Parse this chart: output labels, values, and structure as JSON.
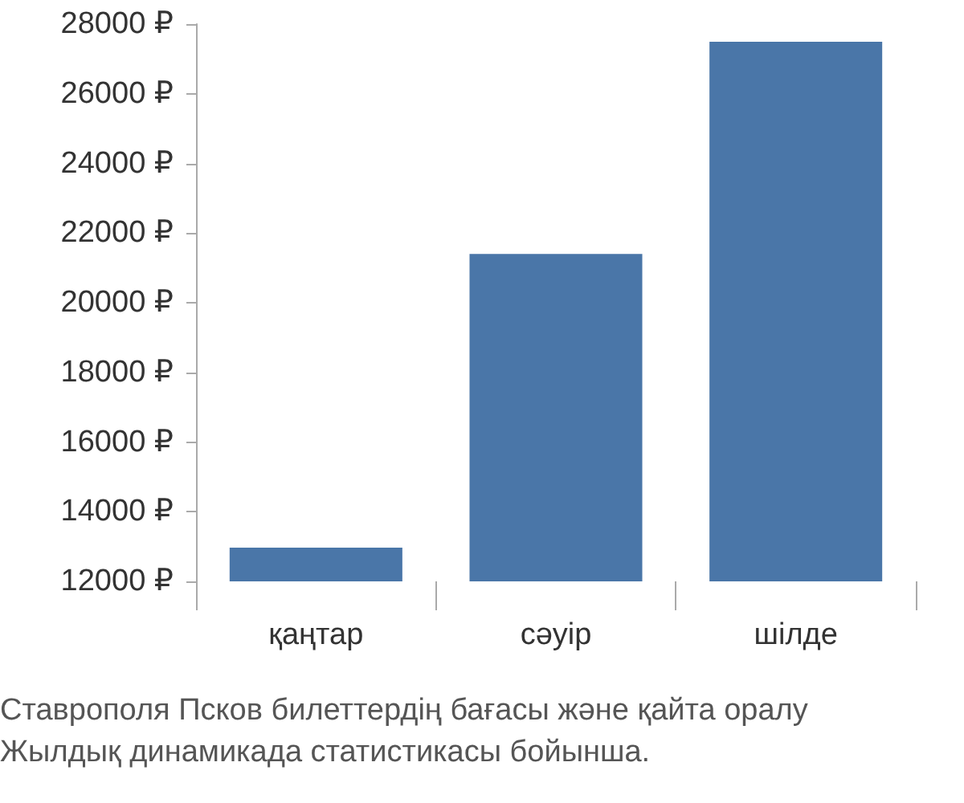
{
  "chart_data": {
    "type": "bar",
    "categories": [
      "қаңтар",
      "сәуір",
      "шілде"
    ],
    "series": [
      {
        "color": "#4a76a8",
        "values": [
          12970,
          21400,
          27490
        ]
      }
    ],
    "ylim": [
      12000,
      28000
    ],
    "yticks": [
      {
        "value": 12000,
        "label": "12000 ₽"
      },
      {
        "value": 14000,
        "label": "14000 ₽"
      },
      {
        "value": 16000,
        "label": "16000 ₽"
      },
      {
        "value": 18000,
        "label": "18000 ₽"
      },
      {
        "value": 20000,
        "label": "20000 ₽"
      },
      {
        "value": 22000,
        "label": "22000 ₽"
      },
      {
        "value": 24000,
        "label": "24000 ₽"
      },
      {
        "value": 26000,
        "label": "26000 ₽"
      },
      {
        "value": 28000,
        "label": "28000 ₽"
      }
    ],
    "grid": false,
    "annotations": [
      "Ставрополя Псков билеттердің бағасы және қайта оралу",
      "Жылдық динамикада статистикасы бойынша."
    ]
  }
}
